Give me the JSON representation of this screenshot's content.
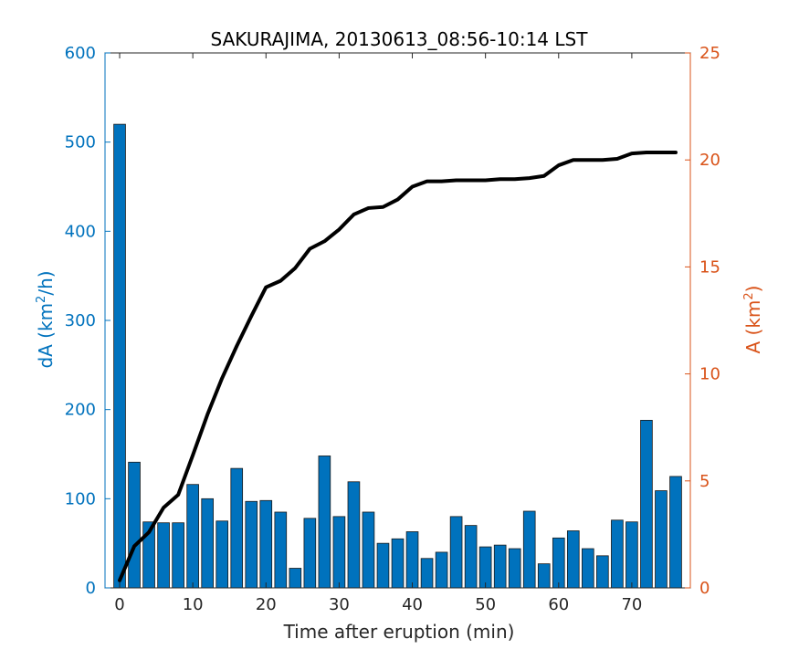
{
  "chart_data": {
    "type": "bar",
    "title": "SAKURAJIMA, 20130613_08:56-10:14 LST",
    "xlabel": "Time after eruption (min)",
    "ylabel_left": {
      "pre": "dA (km",
      "sup": "2",
      "post": "/h)"
    },
    "ylabel_right": {
      "pre": "A (km",
      "sup": "2",
      "post": ")"
    },
    "xlim": [
      -2,
      78
    ],
    "ylim_left": [
      0,
      600
    ],
    "ylim_right": [
      0,
      25
    ],
    "xticks": [
      0,
      10,
      20,
      30,
      40,
      50,
      60,
      70
    ],
    "yticks_left": [
      0,
      100,
      200,
      300,
      400,
      500,
      600
    ],
    "yticks_right": [
      0,
      5,
      10,
      15,
      20,
      25
    ],
    "grid": false,
    "colors": {
      "bars": "#0072bd",
      "line": "#000000",
      "left_axis": "#0072bd",
      "right_axis": "#d95319"
    },
    "series": [
      {
        "kind": "bar",
        "axis": "left",
        "x": [
          0,
          2,
          4,
          6,
          8,
          10,
          12,
          14,
          16,
          18,
          20,
          22,
          24,
          26,
          28,
          30,
          32,
          34,
          36,
          38,
          40,
          42,
          44,
          46,
          48,
          50,
          52,
          54,
          56,
          58,
          60,
          62,
          64,
          66,
          68,
          70,
          72,
          74,
          76
        ],
        "values": [
          520,
          141,
          74,
          73,
          73,
          116,
          100,
          75,
          134,
          97,
          98,
          85,
          22,
          78,
          148,
          80,
          119,
          85,
          50,
          55,
          63,
          33,
          40,
          80,
          70,
          46,
          48,
          44,
          86,
          27,
          56,
          64,
          44,
          36,
          76,
          74,
          188,
          109,
          125
        ]
      },
      {
        "kind": "line",
        "axis": "right",
        "x": [
          0,
          2,
          4,
          6,
          8,
          10,
          12,
          14,
          16,
          18,
          20,
          22,
          24,
          26,
          28,
          30,
          32,
          34,
          36,
          38,
          40,
          42,
          44,
          46,
          48,
          50,
          52,
          54,
          56,
          58,
          60,
          62,
          64,
          66,
          68,
          70,
          72,
          74,
          76
        ],
        "values": [
          0.35,
          1.95,
          2.6,
          3.75,
          4.35,
          6.2,
          8.1,
          9.8,
          11.3,
          12.7,
          14.05,
          14.35,
          14.95,
          15.85,
          16.2,
          16.75,
          17.45,
          17.75,
          17.8,
          18.15,
          18.75,
          19.0,
          19.0,
          19.05,
          19.05,
          19.05,
          19.1,
          19.1,
          19.15,
          19.25,
          19.75,
          20.0,
          20.0,
          20.0,
          20.05,
          20.3,
          20.35,
          20.35,
          20.35
        ]
      }
    ]
  }
}
